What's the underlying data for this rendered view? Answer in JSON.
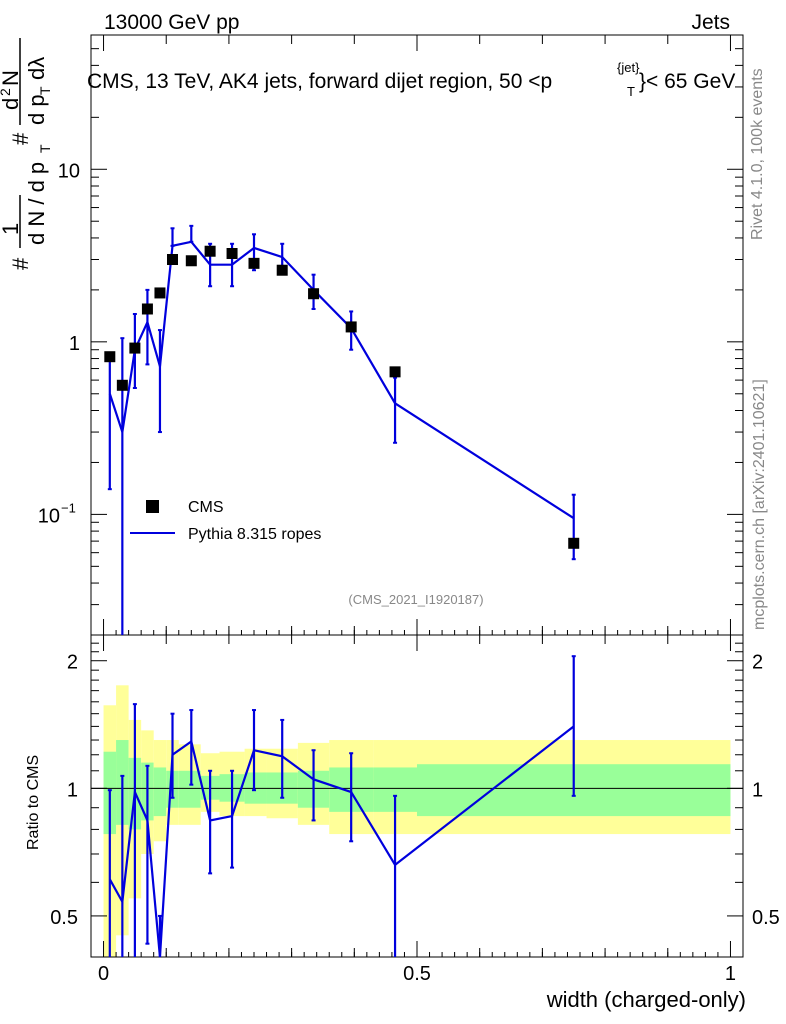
{
  "header": {
    "left": "13000 GeV pp",
    "right": "Jets"
  },
  "side_text": {
    "rivet": "Rivet 4.1.0,  100k events",
    "mcplots": "mcplots.cern.ch [arXiv:2401.10621]"
  },
  "chart_data": {
    "type": "scatter",
    "title": "CMS, 13 TeV, AK4 jets, forward dijet region, 50 <p",
    "title_sup": "{jet}",
    "title_sub": "T",
    "title_tail": "}< 65 GeV",
    "analysis_tag": "(CMS_2021_I1920187)",
    "xlabel": "width (charged-only)",
    "ylabel_main": "# 1/(dN/dp_T) # d²N/(dp_T dλ)",
    "ylabel_ratio": "Ratio to CMS",
    "xlim": [
      -0.02,
      1.02
    ],
    "ylim_main": [
      0.02,
      60
    ],
    "ylim_ratio": [
      0.4,
      2.3
    ],
    "x_ticks": [
      {
        "v": 0,
        "label": "0"
      },
      {
        "v": 0.5,
        "label": "0.5"
      },
      {
        "v": 1,
        "label": "1"
      }
    ],
    "y_ticks_main": [
      {
        "v": 0.1,
        "label": "10",
        "exp": "−1"
      },
      {
        "v": 1,
        "label": "1",
        "exp": ""
      },
      {
        "v": 10,
        "label": "10",
        "exp": ""
      }
    ],
    "y_ticks_ratio": [
      {
        "v": 0.5,
        "label": "0.5"
      },
      {
        "v": 1,
        "label": "1"
      },
      {
        "v": 2,
        "label": "2"
      }
    ],
    "legend": [
      {
        "name": "CMS",
        "style": "marker"
      },
      {
        "name": "Pythia 8.315 ropes",
        "style": "line"
      }
    ],
    "x": [
      0.01,
      0.03,
      0.05,
      0.07,
      0.09,
      0.11,
      0.14,
      0.17,
      0.205,
      0.24,
      0.285,
      0.335,
      0.395,
      0.465,
      0.75
    ],
    "series": [
      {
        "name": "CMS",
        "color": "#000000",
        "values": [
          0.82,
          0.56,
          0.92,
          1.55,
          1.92,
          3.0,
          2.95,
          3.35,
          3.25,
          2.85,
          2.6,
          1.9,
          1.22,
          0.67,
          0.068
        ]
      },
      {
        "name": "Pythia 8.315 ropes",
        "color": "#0000dd",
        "values": [
          0.5,
          0.3,
          0.9,
          1.3,
          0.72,
          3.6,
          3.8,
          2.8,
          2.8,
          3.5,
          3.1,
          2.0,
          1.2,
          0.44,
          0.095
        ],
        "err_lo": [
          0.36,
          0.285,
          0.36,
          0.56,
          0.42,
          0.0,
          0.0,
          0.7,
          0.7,
          0.9,
          0.6,
          0.45,
          0.3,
          0.18,
          0.04
        ],
        "err_hi": [
          0.35,
          0.75,
          0.55,
          0.7,
          0.45,
          0.95,
          0.9,
          0.9,
          0.9,
          0.7,
          0.6,
          0.45,
          0.3,
          0.18,
          0.035
        ],
        "ratio": [
          0.61,
          0.54,
          0.98,
          0.84,
          0.375,
          1.2,
          1.29,
          0.84,
          0.86,
          1.23,
          1.19,
          1.05,
          0.98,
          0.66,
          1.4
        ],
        "ratio_lo": [
          0.4,
          0.13,
          0.4,
          0.43,
          0.16,
          0.95,
          1.02,
          0.63,
          0.65,
          0.99,
          0.95,
          0.84,
          0.75,
          0.4,
          0.96
        ],
        "ratio_hi": [
          0.99,
          1.07,
          1.58,
          1.13,
          0.5,
          1.5,
          1.53,
          1.1,
          1.1,
          1.53,
          1.45,
          1.23,
          1.21,
          0.96,
          2.05
        ]
      }
    ],
    "bands": {
      "edges": [
        0.0,
        0.02,
        0.04,
        0.06,
        0.08,
        0.1,
        0.12,
        0.155,
        0.185,
        0.225,
        0.26,
        0.31,
        0.36,
        0.43,
        0.5,
        1.0
      ],
      "green_lo": [
        0.78,
        0.82,
        0.8,
        0.84,
        0.86,
        0.9,
        0.9,
        0.94,
        0.93,
        0.92,
        0.92,
        0.9,
        0.88,
        0.88,
        0.86
      ],
      "green_hi": [
        1.22,
        1.3,
        1.18,
        1.15,
        1.12,
        1.1,
        1.1,
        1.07,
        1.08,
        1.09,
        1.09,
        1.1,
        1.12,
        1.12,
        1.14
      ],
      "yellow_lo": [
        0.4,
        0.45,
        0.55,
        0.7,
        0.75,
        0.82,
        0.82,
        0.88,
        0.86,
        0.86,
        0.85,
        0.82,
        0.78,
        0.78,
        0.78
      ],
      "yellow_hi": [
        1.57,
        1.75,
        1.45,
        1.37,
        1.3,
        1.3,
        1.27,
        1.21,
        1.22,
        1.24,
        1.24,
        1.28,
        1.3,
        1.3,
        1.3
      ]
    }
  }
}
